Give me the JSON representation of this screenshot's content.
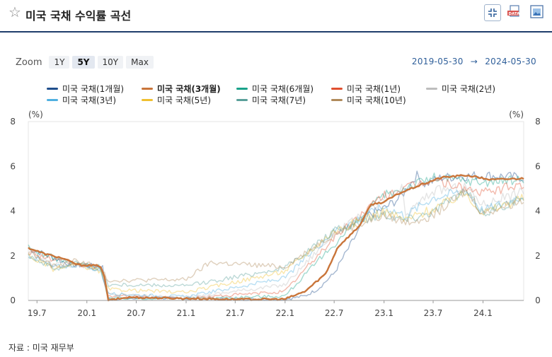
{
  "header": {
    "title": "미국 국채 수익률 곡선",
    "buttons": [
      "fullscreen-icon",
      "data-export-icon",
      "image-export-icon"
    ],
    "data_badge": "DATA"
  },
  "zoom": {
    "label": "Zoom",
    "options": [
      "1Y",
      "5Y",
      "10Y",
      "Max"
    ],
    "selected": "5Y"
  },
  "range": {
    "start": "2019-05-30",
    "arrow": "→",
    "end": "2024-05-30"
  },
  "source": "자료 : 미국 재무부",
  "chart_data": {
    "type": "line",
    "unit_left": "(%)",
    "unit_right": "(%)",
    "ylim": [
      0,
      8
    ],
    "yticks": [
      0,
      2,
      4,
      6,
      8
    ],
    "xticks": [
      "19.7",
      "20.1",
      "20.7",
      "21.1",
      "21.7",
      "22.1",
      "22.7",
      "23.1",
      "23.7",
      "24.1"
    ],
    "xrange": [
      "2019-05-30",
      "2024-05-30"
    ],
    "highlighted_series": "미국 국채(3개월)",
    "series": [
      {
        "name": "미국 국채(1개월)",
        "color": "#1f4e8c",
        "points": [
          [
            "2019-05-30",
            2.33
          ],
          [
            "2019-08-15",
            2.0
          ],
          [
            "2019-10-31",
            1.6
          ],
          [
            "2020-01-15",
            1.55
          ],
          [
            "2020-02-28",
            1.5
          ],
          [
            "2020-03-10",
            0.6
          ],
          [
            "2020-03-25",
            0.0
          ],
          [
            "2020-06-01",
            0.12
          ],
          [
            "2020-12-31",
            0.08
          ],
          [
            "2021-06-30",
            0.05
          ],
          [
            "2021-12-31",
            0.05
          ],
          [
            "2022-03-15",
            0.2
          ],
          [
            "2022-05-01",
            0.5
          ],
          [
            "2022-06-30",
            1.2
          ],
          [
            "2022-08-31",
            2.5
          ],
          [
            "2022-10-31",
            3.8
          ],
          [
            "2022-12-31",
            4.1
          ],
          [
            "2023-03-01",
            4.6
          ],
          [
            "2023-05-01",
            5.6
          ],
          [
            "2023-06-01",
            5.2
          ],
          [
            "2023-08-01",
            5.5
          ],
          [
            "2023-12-31",
            5.6
          ],
          [
            "2024-05-30",
            5.5
          ]
        ]
      },
      {
        "name": "미국 국채(3개월)",
        "color": "#c9753a",
        "points": [
          [
            "2019-05-30",
            2.35
          ],
          [
            "2019-07-31",
            2.08
          ],
          [
            "2019-09-30",
            1.9
          ],
          [
            "2019-11-30",
            1.59
          ],
          [
            "2020-02-20",
            1.55
          ],
          [
            "2020-03-05",
            1.1
          ],
          [
            "2020-03-20",
            0.0
          ],
          [
            "2020-06-01",
            0.14
          ],
          [
            "2020-12-31",
            0.09
          ],
          [
            "2021-06-30",
            0.05
          ],
          [
            "2021-12-31",
            0.06
          ],
          [
            "2022-03-15",
            0.4
          ],
          [
            "2022-05-31",
            1.2
          ],
          [
            "2022-07-15",
            2.4
          ],
          [
            "2022-09-30",
            3.3
          ],
          [
            "2022-11-15",
            4.3
          ],
          [
            "2022-12-31",
            4.4
          ],
          [
            "2023-02-28",
            4.8
          ],
          [
            "2023-05-01",
            5.1
          ],
          [
            "2023-07-31",
            5.5
          ],
          [
            "2023-10-31",
            5.6
          ],
          [
            "2024-01-31",
            5.4
          ],
          [
            "2024-05-30",
            5.46
          ]
        ]
      },
      {
        "name": "미국 국채(6개월)",
        "color": "#1aa28a",
        "points": [
          [
            "2019-05-30",
            2.35
          ],
          [
            "2019-08-31",
            1.9
          ],
          [
            "2019-11-30",
            1.6
          ],
          [
            "2020-02-20",
            1.5
          ],
          [
            "2020-03-20",
            0.1
          ],
          [
            "2020-12-31",
            0.09
          ],
          [
            "2021-12-31",
            0.2
          ],
          [
            "2022-06-30",
            2.5
          ],
          [
            "2022-12-31",
            4.7
          ],
          [
            "2023-06-30",
            5.5
          ],
          [
            "2023-12-31",
            5.3
          ],
          [
            "2024-05-30",
            5.4
          ]
        ]
      },
      {
        "name": "미국 국채(1년)",
        "color": "#e0502f",
        "points": [
          [
            "2019-05-30",
            2.2
          ],
          [
            "2019-08-31",
            1.8
          ],
          [
            "2019-11-30",
            1.6
          ],
          [
            "2020-02-20",
            1.45
          ],
          [
            "2020-03-20",
            0.2
          ],
          [
            "2020-12-31",
            0.1
          ],
          [
            "2021-12-31",
            0.4
          ],
          [
            "2022-06-30",
            2.8
          ],
          [
            "2022-12-31",
            4.7
          ],
          [
            "2023-06-30",
            5.4
          ],
          [
            "2023-12-31",
            4.8
          ],
          [
            "2024-05-30",
            5.2
          ]
        ]
      },
      {
        "name": "미국 국채(2년)",
        "color": "#bdbdbd",
        "points": [
          [
            "2019-05-30",
            2.1
          ],
          [
            "2019-08-31",
            1.6
          ],
          [
            "2019-11-30",
            1.6
          ],
          [
            "2020-02-20",
            1.4
          ],
          [
            "2020-03-20",
            0.3
          ],
          [
            "2020-12-31",
            0.12
          ],
          [
            "2021-12-31",
            0.7
          ],
          [
            "2022-06-30",
            3.0
          ],
          [
            "2022-12-31",
            4.4
          ],
          [
            "2023-03-08",
            5.0
          ],
          [
            "2023-03-20",
            3.8
          ],
          [
            "2023-06-30",
            4.9
          ],
          [
            "2023-10-31",
            5.1
          ],
          [
            "2023-12-31",
            4.3
          ],
          [
            "2024-05-30",
            4.9
          ]
        ]
      },
      {
        "name": "미국 국채(3년)",
        "color": "#4fb0e0",
        "points": [
          [
            "2019-05-30",
            2.05
          ],
          [
            "2019-08-31",
            1.5
          ],
          [
            "2019-11-30",
            1.6
          ],
          [
            "2020-02-20",
            1.35
          ],
          [
            "2020-03-20",
            0.3
          ],
          [
            "2020-12-31",
            0.17
          ],
          [
            "2021-12-31",
            1.0
          ],
          [
            "2022-06-30",
            3.1
          ],
          [
            "2022-12-31",
            4.2
          ],
          [
            "2023-03-20",
            3.8
          ],
          [
            "2023-06-30",
            4.6
          ],
          [
            "2023-10-31",
            4.9
          ],
          [
            "2023-12-31",
            4.0
          ],
          [
            "2024-05-30",
            4.7
          ]
        ]
      },
      {
        "name": "미국 국채(5년)",
        "color": "#f0c030",
        "points": [
          [
            "2019-05-30",
            2.0
          ],
          [
            "2019-08-31",
            1.4
          ],
          [
            "2019-11-30",
            1.6
          ],
          [
            "2020-02-20",
            1.3
          ],
          [
            "2020-03-20",
            0.5
          ],
          [
            "2020-12-31",
            0.36
          ],
          [
            "2021-12-31",
            1.3
          ],
          [
            "2022-06-30",
            3.1
          ],
          [
            "2022-12-31",
            4.0
          ],
          [
            "2023-03-20",
            3.6
          ],
          [
            "2023-06-30",
            4.1
          ],
          [
            "2023-10-31",
            4.8
          ],
          [
            "2023-12-31",
            3.9
          ],
          [
            "2024-05-30",
            4.6
          ]
        ]
      },
      {
        "name": "미국 국채(7년)",
        "color": "#5aa09a",
        "points": [
          [
            "2019-05-30",
            2.05
          ],
          [
            "2019-08-31",
            1.4
          ],
          [
            "2019-11-30",
            1.7
          ],
          [
            "2020-02-20",
            1.35
          ],
          [
            "2020-03-20",
            0.7
          ],
          [
            "2020-12-31",
            0.65
          ],
          [
            "2021-12-31",
            1.45
          ],
          [
            "2022-06-30",
            3.1
          ],
          [
            "2022-12-31",
            3.9
          ],
          [
            "2023-03-20",
            3.6
          ],
          [
            "2023-06-30",
            4.0
          ],
          [
            "2023-10-31",
            4.9
          ],
          [
            "2023-12-31",
            3.9
          ],
          [
            "2024-05-30",
            4.6
          ]
        ]
      },
      {
        "name": "미국 국채(10년)",
        "color": "#b08a5a",
        "points": [
          [
            "2019-05-30",
            2.2
          ],
          [
            "2019-08-31",
            1.5
          ],
          [
            "2019-11-30",
            1.8
          ],
          [
            "2020-02-20",
            1.45
          ],
          [
            "2020-03-20",
            0.9
          ],
          [
            "2020-12-31",
            0.93
          ],
          [
            "2021-03-31",
            1.7
          ],
          [
            "2021-12-31",
            1.5
          ],
          [
            "2022-06-30",
            3.0
          ],
          [
            "2022-12-31",
            3.8
          ],
          [
            "2023-03-20",
            3.5
          ],
          [
            "2023-06-30",
            3.8
          ],
          [
            "2023-10-31",
            4.9
          ],
          [
            "2023-12-31",
            3.9
          ],
          [
            "2024-05-30",
            4.5
          ]
        ]
      }
    ]
  }
}
